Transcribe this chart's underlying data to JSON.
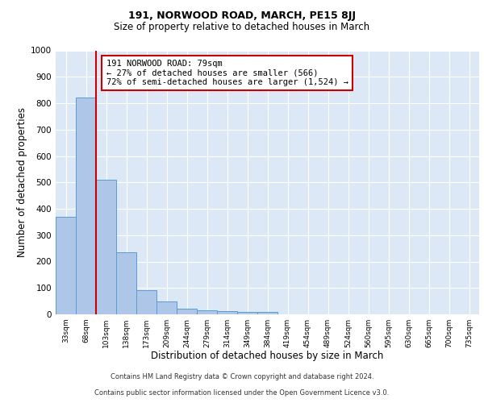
{
  "title_main": "191, NORWOOD ROAD, MARCH, PE15 8JJ",
  "title_sub": "Size of property relative to detached houses in March",
  "xlabel": "Distribution of detached houses by size in March",
  "ylabel": "Number of detached properties",
  "bar_labels": [
    "33sqm",
    "68sqm",
    "103sqm",
    "138sqm",
    "173sqm",
    "209sqm",
    "244sqm",
    "279sqm",
    "314sqm",
    "349sqm",
    "384sqm",
    "419sqm",
    "454sqm",
    "489sqm",
    "524sqm",
    "560sqm",
    "595sqm",
    "630sqm",
    "665sqm",
    "700sqm",
    "735sqm"
  ],
  "bar_values": [
    370,
    820,
    510,
    235,
    92,
    50,
    22,
    16,
    12,
    10,
    10,
    0,
    0,
    0,
    0,
    0,
    0,
    0,
    0,
    0,
    0
  ],
  "bar_color": "#aec6e8",
  "bar_edge_color": "#5b9bd5",
  "background_color": "#dce8f5",
  "grid_color": "#ffffff",
  "annotation_text": "191 NORWOOD ROAD: 79sqm\n← 27% of detached houses are smaller (566)\n72% of semi-detached houses are larger (1,524) →",
  "annotation_box_color": "#ffffff",
  "annotation_box_edge": "#cc0000",
  "ylim": [
    0,
    1000
  ],
  "yticks": [
    0,
    100,
    200,
    300,
    400,
    500,
    600,
    700,
    800,
    900,
    1000
  ],
  "footer_line1": "Contains HM Land Registry data © Crown copyright and database right 2024.",
  "footer_line2": "Contains public sector information licensed under the Open Government Licence v3.0.",
  "red_line_color": "#cc0000"
}
